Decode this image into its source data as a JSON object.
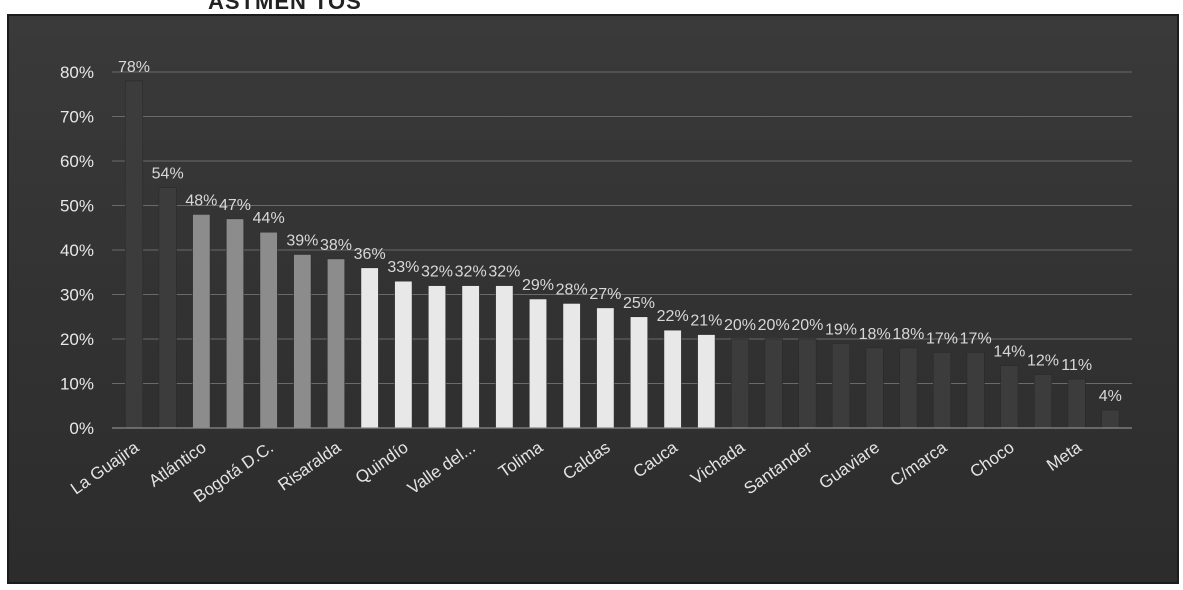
{
  "header_fragment": "ASTMEN TOS",
  "chart_data": {
    "type": "bar",
    "title": "",
    "xlabel": "",
    "ylabel": "",
    "ylim": [
      0,
      80
    ],
    "y_ticks": [
      "0%",
      "10%",
      "20%",
      "30%",
      "40%",
      "50%",
      "60%",
      "70%",
      "80%"
    ],
    "grid": true,
    "legend": "none",
    "categories": [
      "La Guajira",
      "",
      "Atlántico",
      "",
      "Bogotá D.C.",
      "",
      "Risaralda",
      "",
      "Quindío",
      "",
      "Valle del...",
      "",
      "Tolima",
      "",
      "Caldas",
      "",
      "Cauca",
      "",
      "Vichada",
      "",
      "Santander",
      "",
      "Guaviare",
      "",
      "C/marca",
      "",
      "Choco",
      "",
      "Meta",
      ""
    ],
    "values": [
      78,
      54,
      48,
      47,
      44,
      39,
      38,
      36,
      33,
      32,
      32,
      32,
      29,
      28,
      27,
      25,
      22,
      21,
      20,
      20,
      20,
      19,
      18,
      18,
      17,
      17,
      14,
      12,
      11,
      4
    ],
    "data_labels": [
      "78%",
      "54%",
      "48%",
      "47%",
      "44%",
      "39%",
      "38%",
      "36%",
      "33%",
      "32%",
      "32%",
      "32%",
      "29%",
      "28%",
      "27%",
      "25%",
      "22%",
      "21%",
      "20%",
      "20%",
      "20%",
      "19%",
      "18%",
      "18%",
      "17%",
      "17%",
      "14%",
      "12%",
      "11%",
      "4%"
    ],
    "colors": {
      "background": "#333333",
      "grid": "#6a6a6a",
      "bar_dark": "#3c3c3c",
      "bar_gray": "#8c8c8c",
      "bar_light": "#e8e8e8",
      "text": "#e6e6e6"
    }
  }
}
